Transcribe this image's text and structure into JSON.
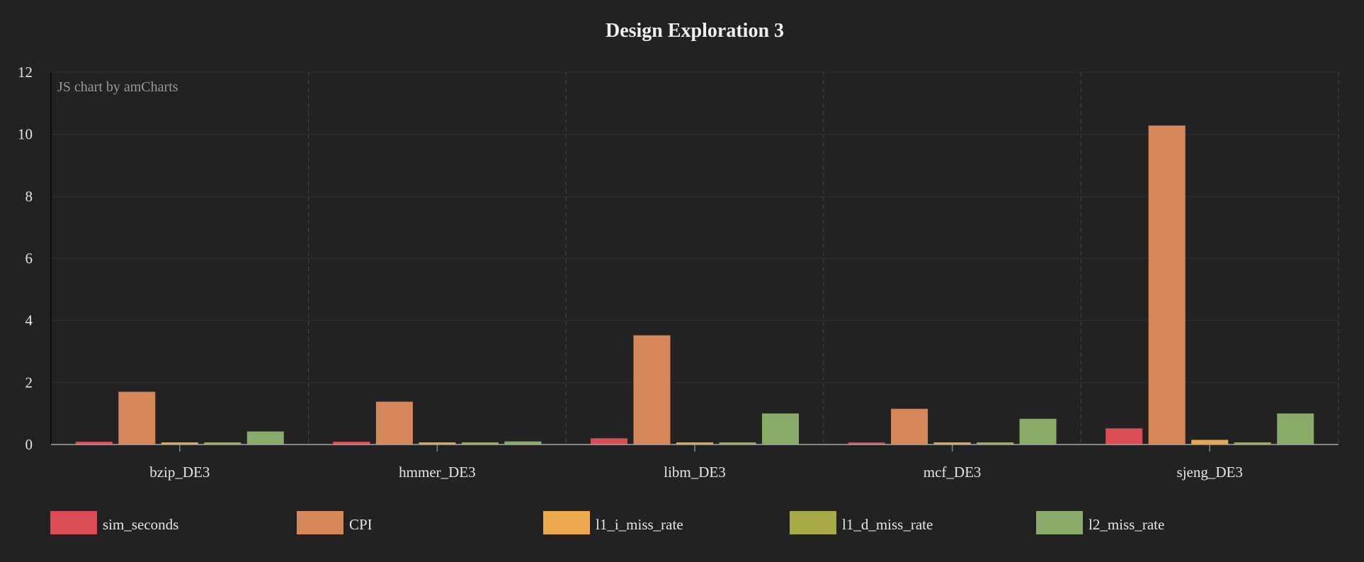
{
  "chart_data": {
    "type": "bar",
    "title": "Design Exploration 3",
    "credit": "JS chart by amCharts",
    "xlabel": "",
    "ylabel": "",
    "ylim": [
      0,
      12
    ],
    "yticks": [
      "0",
      "2",
      "4",
      "6",
      "8",
      "10",
      "12"
    ],
    "categories": [
      "bzip_DE3",
      "hmmer_DE3",
      "libm_DE3",
      "mcf_DE3",
      "sjeng_DE3"
    ],
    "series": [
      {
        "name": "sim_seconds",
        "color": "#dc4c55",
        "values": [
          0.09,
          0.09,
          0.2,
          0.05,
          0.52
        ]
      },
      {
        "name": "CPI",
        "color": "#d7885a",
        "values": [
          1.7,
          1.38,
          3.52,
          1.15,
          10.28
        ]
      },
      {
        "name": "l1_i_miss_rate",
        "color": "#eaa84a",
        "values": [
          0.01,
          0.01,
          0.05,
          0.0,
          0.15
        ]
      },
      {
        "name": "l1_d_miss_rate",
        "color": "#a8aa48",
        "values": [
          0.02,
          0.03,
          0.03,
          0.03,
          0.03
        ]
      },
      {
        "name": "l2_miss_rate",
        "color": "#8aaa6a",
        "values": [
          0.42,
          0.1,
          1.0,
          0.83,
          1.0
        ]
      }
    ],
    "grid": true,
    "legend_position": "bottom"
  }
}
